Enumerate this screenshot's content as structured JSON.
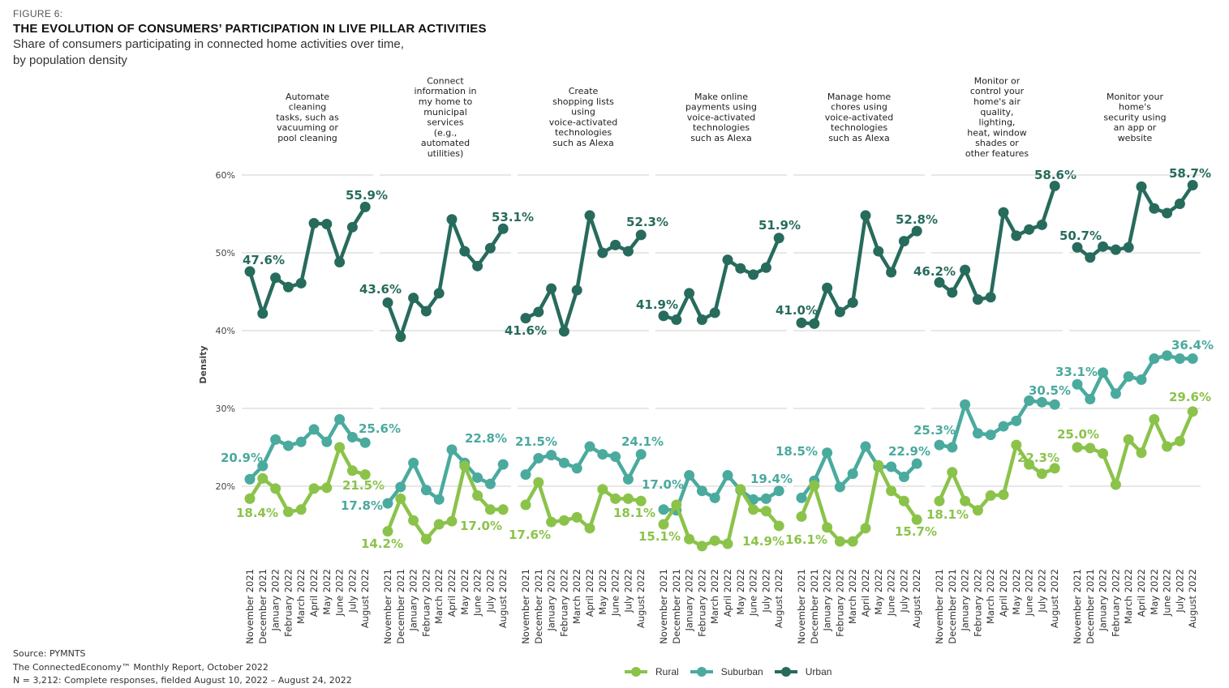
{
  "header": {
    "figure_label": "FIGURE 6:",
    "title": "THE EVOLUTION OF CONSUMERS’ PARTICIPATION IN LIVE PILLAR ACTIVITIES",
    "subtitle_line1": "Share of consumers participating in connected home activities over time,",
    "subtitle_line2": "by population density"
  },
  "footer": {
    "source": "Source: PYMNTS",
    "report": "The ConnectedEconomy™ Monthly Report, October 2022",
    "sample": "N = 3,212: Complete responses, fielded August 10, 2022 – August 24, 2022"
  },
  "legend": [
    {
      "name": "Rural",
      "color": "#8bc34a"
    },
    {
      "name": "Suburban",
      "color": "#4aaa9e"
    },
    {
      "name": "Urban",
      "color": "#276b5c"
    }
  ],
  "chart_data": {
    "type": "line",
    "title": "THE EVOLUTION OF CONSUMERS’ PARTICIPATION IN LIVE PILLAR ACTIVITIES",
    "ylabel": "Density",
    "xlabel": "",
    "ylim": [
      10,
      60
    ],
    "yticks": [
      {
        "value": 60,
        "label": "60%"
      },
      {
        "value": 50,
        "label": "50%"
      },
      {
        "value": 40,
        "label": "40%"
      },
      {
        "value": 30,
        "label": "30%"
      },
      {
        "value": 20,
        "label": "20%"
      }
    ],
    "grid": true,
    "legend_position": "bottom-center",
    "x": [
      "November 2021",
      "December 2021",
      "January 2022",
      "February 2022",
      "March 2022",
      "April 2022",
      "May 2022",
      "June 2022",
      "July 2022",
      "August 2022"
    ],
    "series_colors": {
      "Rural": "#8bc34a",
      "Suburban": "#4aaa9e",
      "Urban": "#276b5c"
    },
    "panels": [
      {
        "title_lines": [
          "Automate",
          "cleaning",
          "tasks, such as",
          "vacuuming or",
          "pool cleaning"
        ],
        "series": [
          {
            "name": "Urban",
            "values": [
              47.6,
              42.2,
              46.8,
              45.6,
              46.1,
              53.8,
              53.7,
              48.8,
              53.3,
              55.9
            ],
            "labels": {
              "first": "47.6%",
              "last": "55.9%"
            }
          },
          {
            "name": "Suburban",
            "values": [
              20.9,
              22.6,
              26.0,
              25.2,
              25.7,
              27.3,
              25.7,
              28.6,
              26.3,
              25.6
            ],
            "labels": {
              "first": "20.9%",
              "last": "25.6%"
            }
          },
          {
            "name": "Rural",
            "values": [
              18.4,
              21.0,
              19.7,
              16.7,
              17.0,
              19.7,
              19.8,
              25.0,
              22.0,
              21.5
            ],
            "labels": {
              "first": "18.4%",
              "last": "21.5%"
            }
          }
        ]
      },
      {
        "title_lines": [
          "Connect",
          "information in",
          "my home to",
          "municipal",
          "services",
          "(e.g.,",
          "automated",
          "utilities)"
        ],
        "series": [
          {
            "name": "Urban",
            "values": [
              43.6,
              39.2,
              44.2,
              42.5,
              44.8,
              54.3,
              50.2,
              48.3,
              50.6,
              53.1
            ],
            "labels": {
              "first": "43.6%",
              "last": "53.1%"
            }
          },
          {
            "name": "Suburban",
            "values": [
              17.8,
              19.9,
              23.0,
              19.5,
              18.3,
              24.7,
              23.0,
              21.1,
              20.3,
              22.8
            ],
            "labels": {
              "first": "17.8%",
              "last": "22.8%"
            }
          },
          {
            "name": "Rural",
            "values": [
              14.2,
              18.4,
              15.6,
              13.2,
              15.1,
              15.5,
              22.6,
              18.8,
              17.0,
              17.0
            ],
            "labels": {
              "first": "14.2%",
              "last": "17.0%"
            }
          }
        ]
      },
      {
        "title_lines": [
          "Create",
          "shopping lists",
          "using",
          "voice-activated",
          "technologies",
          "such as Alexa"
        ],
        "series": [
          {
            "name": "Urban",
            "values": [
              41.6,
              42.4,
              45.4,
              39.9,
              45.2,
              54.8,
              50.0,
              51.0,
              50.2,
              52.3
            ],
            "labels": {
              "first": "41.6%",
              "last": "52.3%"
            }
          },
          {
            "name": "Suburban",
            "values": [
              21.5,
              23.6,
              24.0,
              23.0,
              22.3,
              25.1,
              24.1,
              23.8,
              20.9,
              24.1
            ],
            "labels": {
              "first": "21.5%",
              "last": "24.1%"
            }
          },
          {
            "name": "Rural",
            "values": [
              17.6,
              20.5,
              15.4,
              15.6,
              16.0,
              14.6,
              19.6,
              18.4,
              18.4,
              18.1
            ],
            "labels": {
              "first": "17.6%",
              "last": "18.1%"
            }
          }
        ]
      },
      {
        "title_lines": [
          "Make online",
          "payments using",
          "voice-activated",
          "technologies",
          "such as Alexa"
        ],
        "series": [
          {
            "name": "Urban",
            "values": [
              41.9,
              41.4,
              44.8,
              41.4,
              42.3,
              49.1,
              48.0,
              47.2,
              48.1,
              51.9
            ],
            "labels": {
              "first": "41.9%",
              "last": "51.9%"
            }
          },
          {
            "name": "Suburban",
            "values": [
              17.0,
              16.9,
              21.4,
              19.4,
              18.5,
              21.4,
              19.5,
              18.3,
              18.4,
              19.4
            ],
            "labels": {
              "first": "17.0%",
              "last": "19.4%"
            }
          },
          {
            "name": "Rural",
            "values": [
              15.1,
              17.6,
              13.2,
              12.3,
              13.0,
              12.6,
              19.6,
              17.0,
              16.8,
              14.9
            ],
            "labels": {
              "first": "15.1%",
              "last": "14.9%"
            }
          }
        ]
      },
      {
        "title_lines": [
          "Manage home",
          "chores using",
          "voice-activated",
          "technologies",
          "such as Alexa"
        ],
        "series": [
          {
            "name": "Urban",
            "values": [
              41.0,
              40.9,
              45.5,
              42.4,
              43.6,
              54.8,
              50.2,
              47.5,
              51.5,
              52.8
            ],
            "labels": {
              "first": "41.0%",
              "last": "52.8%"
            }
          },
          {
            "name": "Suburban",
            "values": [
              18.5,
              20.7,
              24.3,
              19.9,
              21.6,
              25.1,
              22.5,
              22.5,
              21.2,
              22.9
            ],
            "labels": {
              "first": "18.5%",
              "last": "22.9%"
            }
          },
          {
            "name": "Rural",
            "values": [
              16.1,
              20.1,
              14.7,
              12.9,
              12.9,
              14.6,
              22.7,
              19.4,
              18.1,
              15.7
            ],
            "labels": {
              "first": "16.1%",
              "last": "15.7%"
            }
          }
        ]
      },
      {
        "title_lines": [
          "Monitor or",
          "control your",
          "home's air",
          "quality,",
          "lighting,",
          "heat, window",
          "shades or",
          "other features"
        ],
        "series": [
          {
            "name": "Urban",
            "values": [
              46.2,
              44.9,
              47.8,
              44.0,
              44.3,
              55.2,
              52.2,
              53.0,
              53.6,
              58.6
            ],
            "labels": {
              "first": "46.2%",
              "last": "58.6%"
            }
          },
          {
            "name": "Suburban",
            "values": [
              25.3,
              25.0,
              30.5,
              26.8,
              26.6,
              27.7,
              28.4,
              31.0,
              30.8,
              30.5
            ],
            "labels": {
              "first": "25.3%",
              "last": "30.5%"
            }
          },
          {
            "name": "Rural",
            "values": [
              18.1,
              21.8,
              18.1,
              16.9,
              18.8,
              18.9,
              25.3,
              22.8,
              21.6,
              22.3
            ],
            "labels": {
              "first": "18.1%",
              "last": "22.3%"
            }
          }
        ]
      },
      {
        "title_lines": [
          "Monitor your",
          "home's",
          "security using",
          "an app or",
          "website"
        ],
        "series": [
          {
            "name": "Urban",
            "values": [
              50.7,
              49.4,
              50.8,
              50.4,
              50.7,
              58.5,
              55.7,
              55.1,
              56.3,
              58.7
            ],
            "labels": {
              "first": "50.7%",
              "last": "58.7%"
            }
          },
          {
            "name": "Suburban",
            "values": [
              33.1,
              31.2,
              34.6,
              31.9,
              34.1,
              33.7,
              36.4,
              36.8,
              36.4,
              36.4
            ],
            "labels": {
              "first": "33.1%",
              "last": "36.4%"
            }
          },
          {
            "name": "Rural",
            "values": [
              25.0,
              24.9,
              24.2,
              20.2,
              26.0,
              24.3,
              28.6,
              25.1,
              25.8,
              29.6
            ],
            "labels": {
              "first": "25.0%",
              "last": "29.6%"
            }
          }
        ]
      }
    ]
  }
}
